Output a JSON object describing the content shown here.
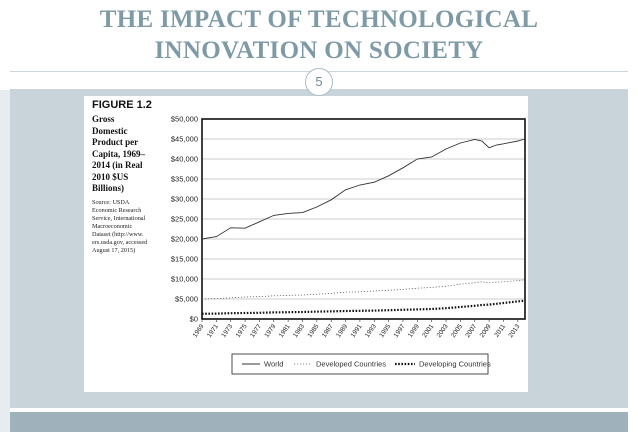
{
  "slide": {
    "title_line1": "THE IMPACT OF TECHNOLOGICAL",
    "title_line2": "INNOVATION ON SOCIETY",
    "slide_number": "5",
    "colors": {
      "title": "#7e9aa6",
      "band": "#c8d3da",
      "footer": "#9fb1ba"
    }
  },
  "figure": {
    "label": "FIGURE 1.2",
    "caption_lines": [
      "Gross",
      "Domestic",
      "Product per",
      "Capita, 1969–",
      "2014 (in Real",
      "2010 $US",
      "Billions)"
    ],
    "source_lines": [
      "Source: USDA",
      "Economic Research",
      "Service, International",
      "Macroeconomic",
      "Dataset (http://www.",
      "ers.usda.gov, accessed",
      "August 17, 2015)"
    ]
  },
  "chart_data": {
    "type": "line",
    "title": "Gross Domestic Product per Capita, 1969–2014 (in Real 2010 $US Billions)",
    "xlabel": "",
    "ylabel": "",
    "ylim": [
      0,
      50000
    ],
    "y_ticks": [
      "$0",
      "$5,000",
      "$10,000",
      "$15,000",
      "$20,000",
      "$25,000",
      "$30,000",
      "$35,000",
      "$40,000",
      "$45,000",
      "$50,000"
    ],
    "x_ticks": [
      "1969",
      "1971",
      "1973",
      "1975",
      "1977",
      "1979",
      "1981",
      "1983",
      "1985",
      "1987",
      "1989",
      "1991",
      "1993",
      "1995",
      "1997",
      "1999",
      "2001",
      "2003",
      "2005",
      "2007",
      "2009",
      "2011",
      "2013"
    ],
    "grid": true,
    "legend_position": "bottom",
    "x": [
      1969,
      1971,
      1973,
      1975,
      1977,
      1979,
      1981,
      1983,
      1985,
      1987,
      1989,
      1991,
      1993,
      1995,
      1997,
      1999,
      2001,
      2003,
      2005,
      2007,
      2008,
      2009,
      2010,
      2011,
      2013,
      2014
    ],
    "series": [
      {
        "name": "World",
        "style": "solid",
        "values": [
          20000,
          20600,
          22800,
          22700,
          24300,
          25900,
          26400,
          26600,
          28000,
          29800,
          32300,
          33500,
          34200,
          35800,
          37800,
          40000,
          40500,
          42500,
          44000,
          44900,
          44500,
          42800,
          43500,
          43800,
          44500,
          45000
        ]
      },
      {
        "name": "Developed Countries",
        "style": "dotted",
        "values": [
          5000,
          5100,
          5300,
          5500,
          5600,
          5800,
          5900,
          6000,
          6200,
          6400,
          6700,
          6800,
          7000,
          7200,
          7400,
          7700,
          7900,
          8200,
          8700,
          9100,
          9300,
          9000,
          9200,
          9300,
          9600,
          9800
        ]
      },
      {
        "name": "Developing Countries",
        "style": "heavy-dotted",
        "values": [
          1300,
          1350,
          1450,
          1500,
          1550,
          1650,
          1700,
          1750,
          1850,
          1900,
          2000,
          2050,
          2100,
          2200,
          2300,
          2400,
          2500,
          2700,
          3000,
          3300,
          3500,
          3600,
          3800,
          4000,
          4400,
          4600
        ]
      }
    ]
  }
}
